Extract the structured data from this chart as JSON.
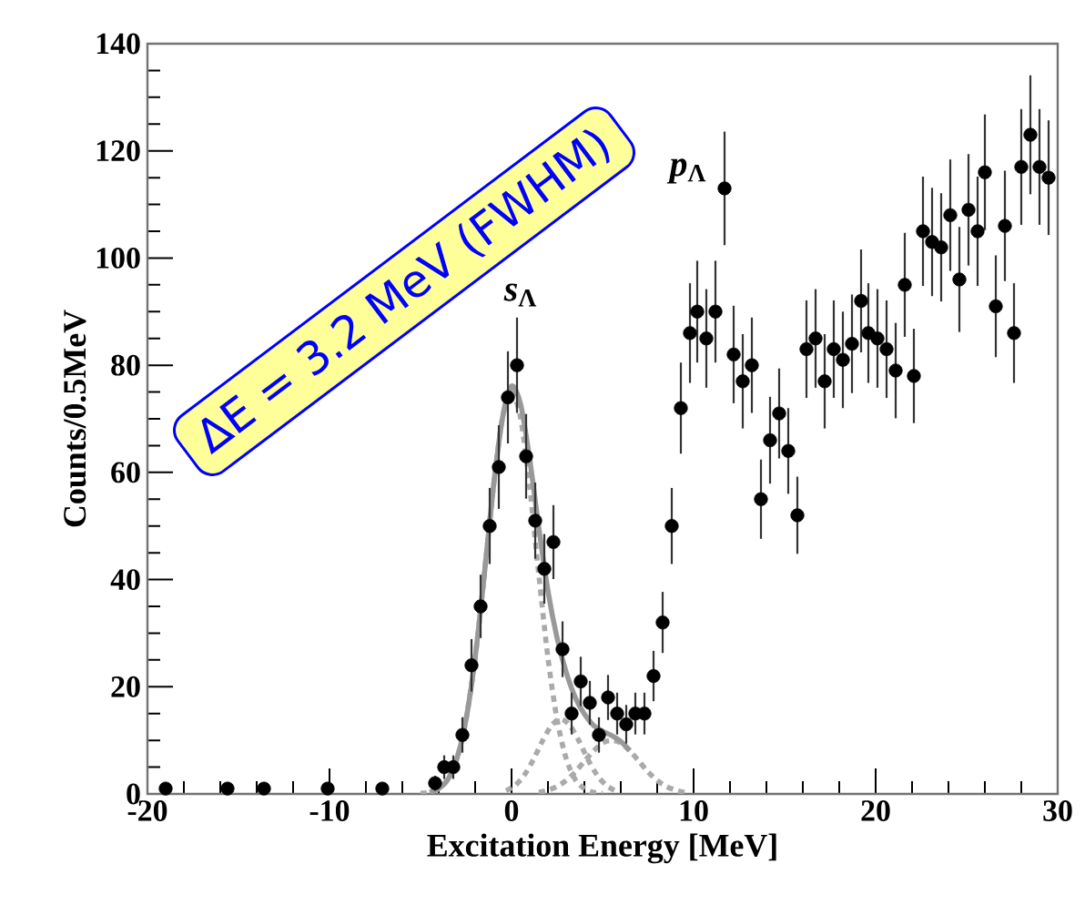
{
  "chart_data": {
    "type": "scatter",
    "xlabel": "Excitation Energy [MeV]",
    "ylabel": "Counts/0.5MeV",
    "xlim": [
      -20,
      30
    ],
    "xticks": [
      -20,
      -10,
      0,
      10,
      20,
      30
    ],
    "ylim": [
      0,
      140
    ],
    "yticks": [
      0,
      20,
      40,
      60,
      80,
      100,
      120,
      140
    ],
    "series": [
      {
        "type": "line",
        "color": "#aaaaaa",
        "line_style": "dotted",
        "marker": "none",
        "x": [
          -5,
          -4.5,
          -4,
          -3.5,
          -3,
          -2.5,
          -2,
          -1.5,
          -1,
          -0.5,
          0,
          0.5,
          1,
          1.5,
          2,
          2.5,
          3,
          3.5,
          4,
          4.5,
          5
        ],
        "values": [
          0.1,
          0.3,
          1.0,
          2.7,
          6.6,
          13.9,
          25.4,
          40.8,
          57.2,
          70.1,
          75,
          70.1,
          57.2,
          40.8,
          25.4,
          13.9,
          6.6,
          2.7,
          1.0,
          0.3,
          0.1
        ]
      },
      {
        "type": "line",
        "color": "#aaaaaa",
        "line_style": "dotted",
        "marker": "none",
        "x": [
          -0.3,
          0.2,
          0.7,
          1.2,
          1.7,
          2.2,
          2.7,
          3.2,
          3.7,
          4.2,
          4.7,
          5.2,
          5.7
        ],
        "values": [
          0.6,
          1.6,
          3.5,
          6.4,
          9.9,
          12.8,
          14,
          12.8,
          9.9,
          6.4,
          3.5,
          1.6,
          0.6
        ]
      },
      {
        "type": "line",
        "color": "#aaaaaa",
        "line_style": "dotted",
        "marker": "none",
        "x": [
          1.5,
          2,
          2.5,
          3,
          3.5,
          4,
          4.5,
          5,
          5.5,
          6,
          6.5,
          7,
          7.5,
          8,
          8.5,
          9,
          9.5
        ],
        "values": [
          0.3,
          0.7,
          1.4,
          2.5,
          4.1,
          6.1,
          8.0,
          9.5,
          10,
          9.5,
          8.0,
          6.1,
          4.1,
          2.5,
          1.4,
          0.7,
          0.3
        ]
      },
      {
        "type": "line",
        "color": "#999999",
        "line_style": "solid",
        "marker": "none",
        "x": [
          -4.5,
          -4,
          -3.5,
          -3,
          -2.5,
          -2,
          -1.5,
          -1,
          -0.5,
          0,
          0.5,
          1,
          1.5,
          2,
          2.5,
          3,
          3.5,
          4,
          4.5,
          5,
          5.5,
          6,
          6.5
        ],
        "values": [
          0.3,
          1.0,
          2.7,
          6.6,
          13.9,
          25.4,
          40.8,
          57.2,
          70.1,
          76.1,
          72.7,
          62.4,
          49.6,
          37.9,
          29.1,
          22.7,
          18.0,
          14.9,
          12.8,
          11.7,
          10.9,
          9.8,
          8.1
        ]
      },
      {
        "color": "#000000",
        "marker": "circle",
        "x": [
          -19,
          -15.6,
          -13.6,
          -10.1,
          -7.1,
          -4.2,
          -3.7,
          -3.2,
          -2.7,
          -2.2,
          -1.7,
          -1.2,
          -0.7,
          -0.2,
          0.3,
          0.8,
          1.3,
          1.8,
          2.3,
          2.8,
          3.3,
          3.8,
          4.3,
          4.8,
          5.3,
          5.8,
          6.3,
          6.8,
          7.3,
          7.8,
          8.3,
          8.8,
          9.3,
          9.8,
          10.2,
          10.7,
          11.2,
          11.7,
          12.2,
          12.7,
          13.2,
          13.7,
          14.2,
          14.7,
          15.2,
          15.7,
          16.2,
          16.7,
          17.2,
          17.7,
          18.2,
          18.7,
          19.2,
          19.6,
          20.1,
          20.6,
          21.1,
          21.6,
          22.1,
          22.6,
          23.1,
          23.6,
          24.1,
          24.6,
          25.1,
          25.6,
          26.0,
          26.6,
          27.1,
          27.6,
          28.0,
          28.5,
          29.0,
          29.5
        ],
        "values": [
          1,
          1,
          1,
          1,
          1,
          2,
          5,
          5,
          11,
          24,
          35,
          50,
          61,
          74,
          80,
          63,
          51,
          42,
          47,
          27,
          15,
          21,
          17,
          11,
          18,
          15,
          13,
          15,
          15,
          22,
          32,
          50,
          72,
          86,
          90,
          85,
          90,
          113,
          82,
          77,
          80,
          55,
          66,
          71,
          64,
          52,
          83,
          85,
          77,
          83,
          81,
          84,
          92,
          86,
          85,
          83,
          79,
          95,
          78,
          105,
          103,
          102,
          108,
          96,
          109,
          105,
          116,
          91,
          106,
          86,
          117,
          123,
          117,
          115
        ],
        "errors": [
          null,
          null,
          null,
          null,
          null,
          1.4,
          2.2,
          2.2,
          3.3,
          4.9,
          5.9,
          7.1,
          7.8,
          8.6,
          8.9,
          7.9,
          7.1,
          6.5,
          6.9,
          5.2,
          3.9,
          4.6,
          4.1,
          3.3,
          4.2,
          3.9,
          3.6,
          3.9,
          3.9,
          4.7,
          5.7,
          7.1,
          8.5,
          9.3,
          9.5,
          9.2,
          9.5,
          10.6,
          9.1,
          8.8,
          8.9,
          7.4,
          8.1,
          8.4,
          8.0,
          7.2,
          9.1,
          9.2,
          8.8,
          9.1,
          9.0,
          9.2,
          9.6,
          9.3,
          9.2,
          9.1,
          8.9,
          9.7,
          8.8,
          10.2,
          10.1,
          10.1,
          10.4,
          9.8,
          10.4,
          10.2,
          10.8,
          9.5,
          10.3,
          9.3,
          10.8,
          11.1,
          10.8,
          10.7
        ]
      }
    ],
    "annotations": [
      "ΔE = 3.2 MeV (FWHM)",
      "*s*$_{Λ}$",
      "*p*$_{Λ}$"
    ]
  }
}
